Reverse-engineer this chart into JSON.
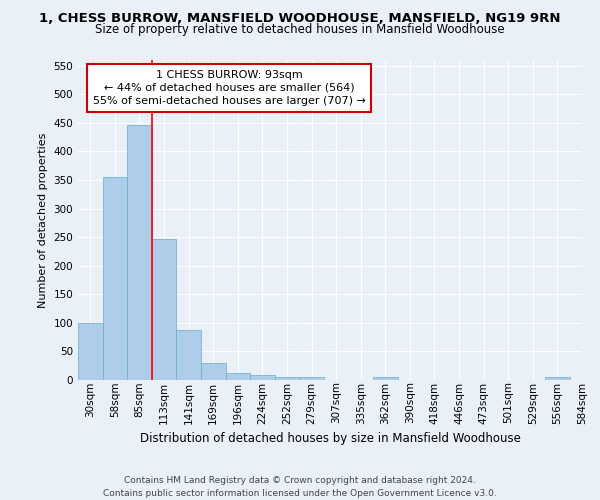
{
  "title": "1, CHESS BURROW, MANSFIELD WOODHOUSE, MANSFIELD, NG19 9RN",
  "subtitle": "Size of property relative to detached houses in Mansfield Woodhouse",
  "xlabel": "Distribution of detached houses by size in Mansfield Woodhouse",
  "ylabel": "Number of detached properties",
  "bin_labels": [
    "30sqm",
    "58sqm",
    "85sqm",
    "113sqm",
    "141sqm",
    "169sqm",
    "196sqm",
    "224sqm",
    "252sqm",
    "279sqm",
    "307sqm",
    "335sqm",
    "362sqm",
    "390sqm",
    "418sqm",
    "446sqm",
    "473sqm",
    "501sqm",
    "529sqm",
    "556sqm",
    "584sqm"
  ],
  "bar_values": [
    100,
    355,
    447,
    246,
    88,
    30,
    13,
    9,
    5,
    5,
    0,
    0,
    5,
    0,
    0,
    0,
    0,
    0,
    0,
    5
  ],
  "bar_color": "#aecde8",
  "bar_edge_color": "#6aaad4",
  "bar_width": 1.0,
  "red_line_x": 2.5,
  "annotation_line1": "1 CHESS BURROW: 93sqm",
  "annotation_line2": "← 44% of detached houses are smaller (564)",
  "annotation_line3": "55% of semi-detached houses are larger (707) →",
  "annotation_box_color": "#ffffff",
  "annotation_box_edge": "#cc0000",
  "ylim": [
    0,
    560
  ],
  "yticks": [
    0,
    50,
    100,
    150,
    200,
    250,
    300,
    350,
    400,
    450,
    500,
    550
  ],
  "title_fontsize": 9.5,
  "subtitle_fontsize": 8.5,
  "xlabel_fontsize": 8.5,
  "ylabel_fontsize": 8,
  "tick_fontsize": 7.5,
  "annotation_fontsize": 8,
  "footer1": "Contains HM Land Registry data © Crown copyright and database right 2024.",
  "footer2": "Contains public sector information licensed under the Open Government Licence v3.0.",
  "footer_fontsize": 6.5,
  "background_color": "#eaf0f8",
  "grid_color": "#ffffff"
}
